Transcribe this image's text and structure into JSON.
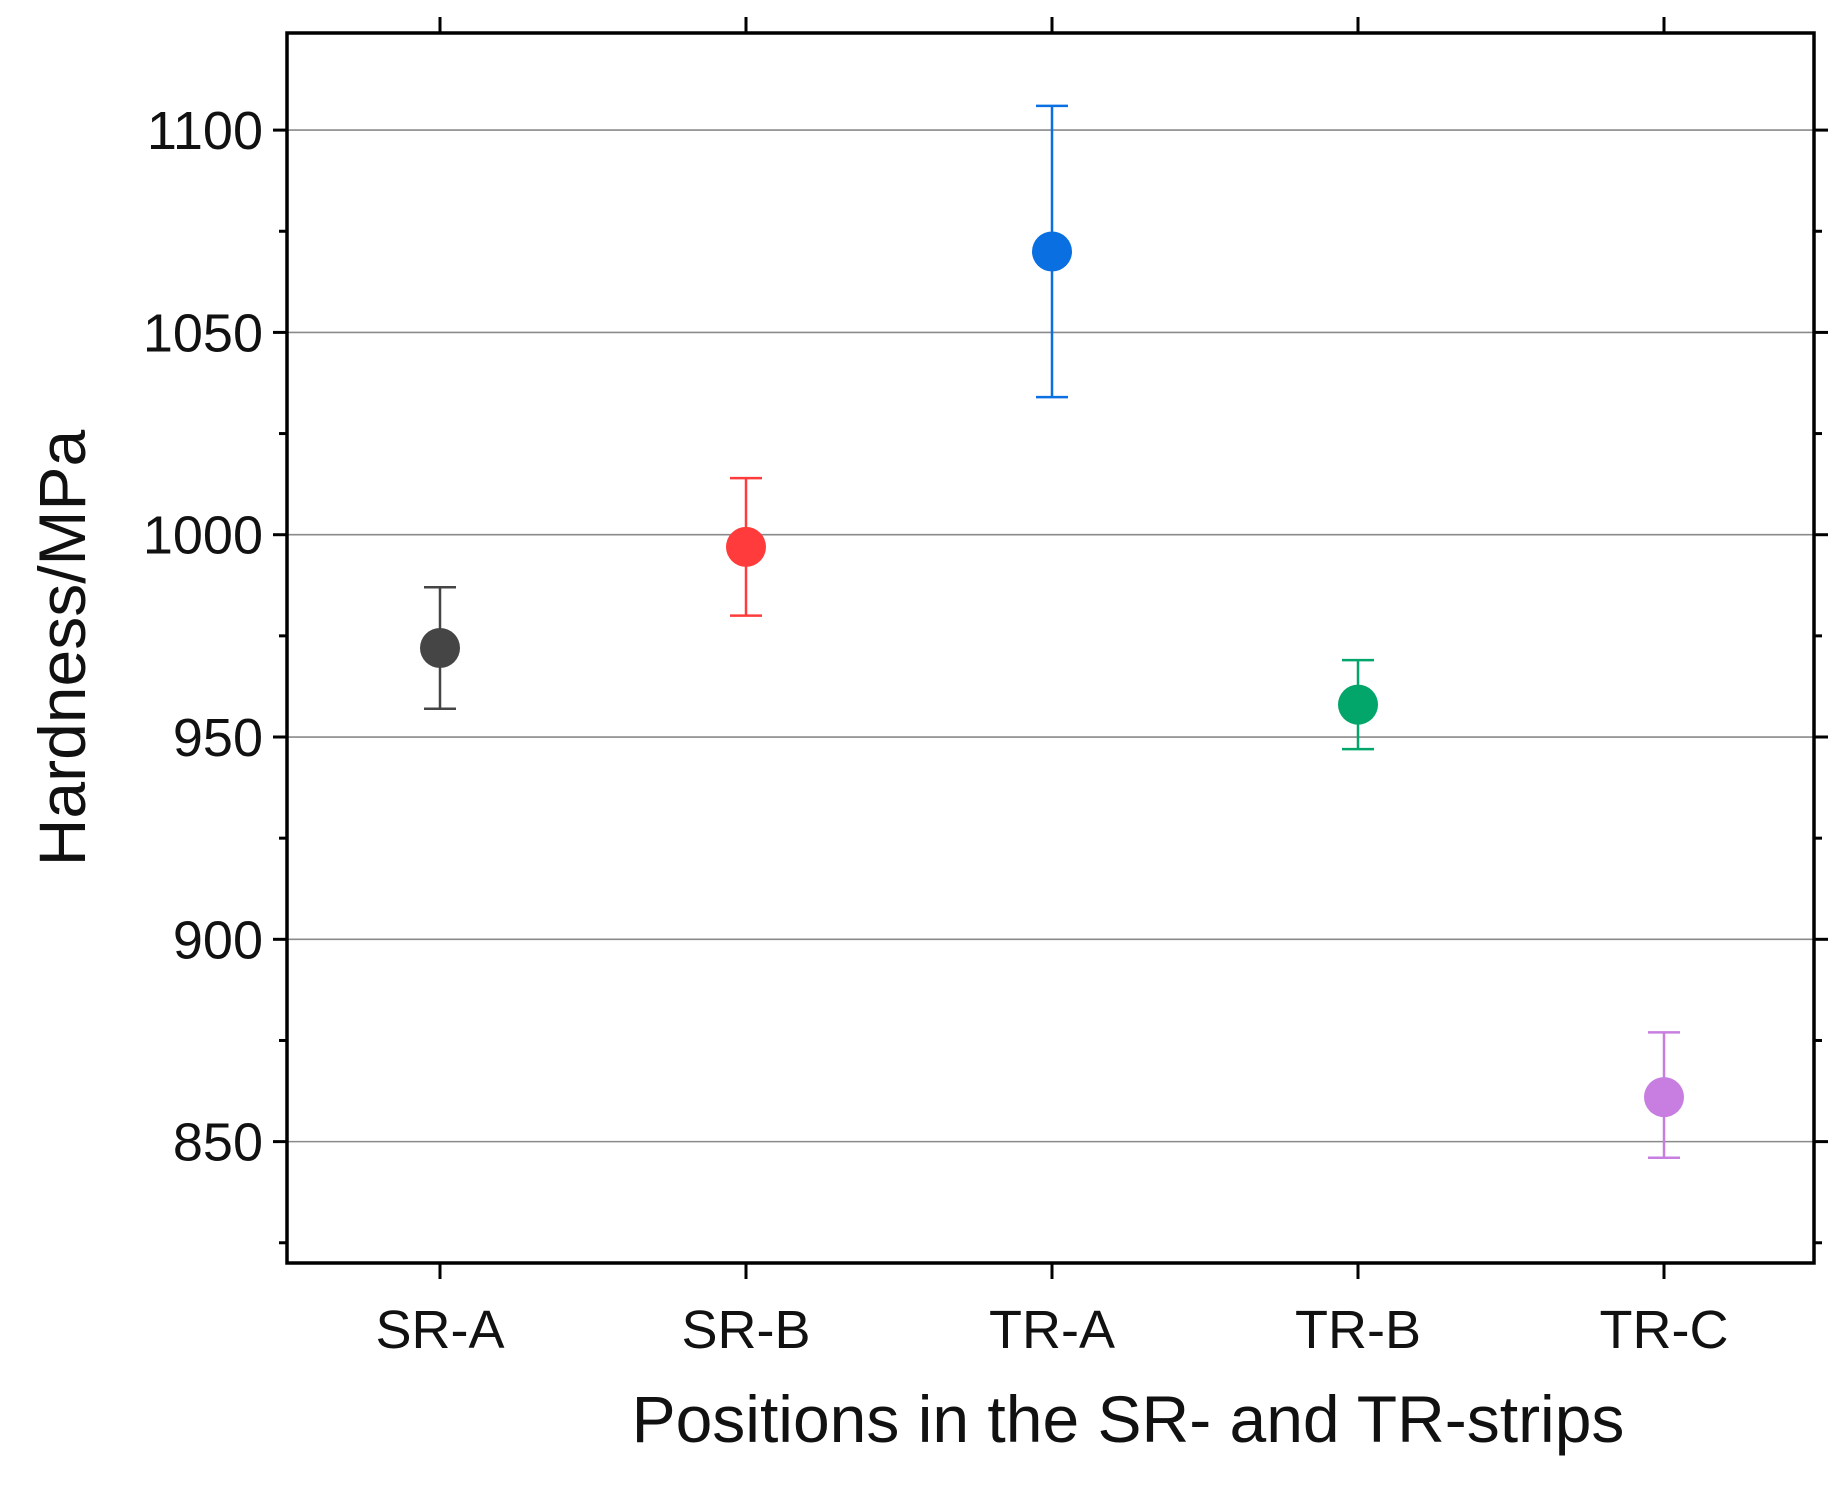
{
  "chart_data": {
    "type": "scatter",
    "xlabel": "Positions in the SR- and TR-strips",
    "ylabel": "Hardness/MPa",
    "categories": [
      "SR-A",
      "SR-B",
      "TR-A",
      "TR-B",
      "TR-C"
    ],
    "ylim": [
      820,
      1124
    ],
    "yticks": [
      850,
      900,
      950,
      1000,
      1050,
      1100
    ],
    "grid": true,
    "points": [
      {
        "category": "SR-A",
        "value": 972,
        "err_low": 957,
        "err_high": 987,
        "color": "#454545"
      },
      {
        "category": "SR-B",
        "value": 997,
        "err_low": 980,
        "err_high": 1014,
        "color": "#ff3b3b"
      },
      {
        "category": "TR-A",
        "value": 1070,
        "err_low": 1034,
        "err_high": 1106,
        "color": "#0a6fe0"
      },
      {
        "category": "TR-B",
        "value": 958,
        "err_low": 947,
        "err_high": 969,
        "color": "#03a66a"
      },
      {
        "category": "TR-C",
        "value": 861,
        "err_low": 846,
        "err_high": 877,
        "color": "#c77ee0"
      }
    ]
  }
}
